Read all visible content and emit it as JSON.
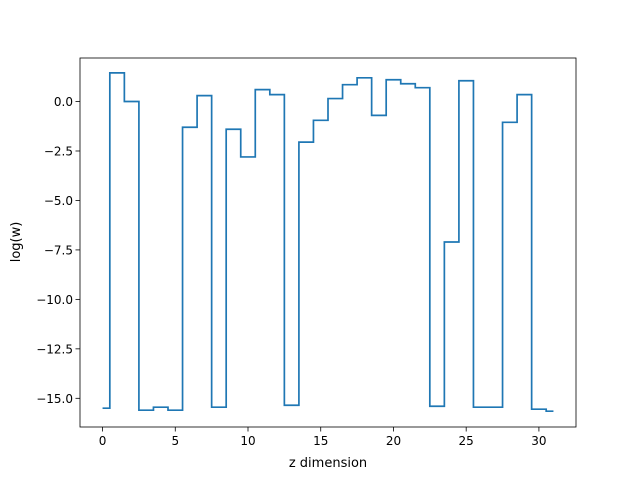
{
  "chart_data": {
    "type": "line",
    "style": "step",
    "title": "",
    "xlabel": "z dimension",
    "ylabel": "log(w)",
    "xlim": [
      -1.55,
      32.55
    ],
    "ylim": [
      -16.45,
      2.2
    ],
    "xticks": [
      0,
      5,
      10,
      15,
      20,
      25,
      30
    ],
    "yticks": [
      0.0,
      -2.5,
      -5.0,
      -7.5,
      -10.0,
      -12.5,
      -15.0
    ],
    "xtick_labels": [
      "0",
      "5",
      "10",
      "15",
      "20",
      "25",
      "30"
    ],
    "ytick_labels": [
      "0.0",
      "−2.5",
      "−5.0",
      "−7.5",
      "−10.0",
      "−12.5",
      "−15.0"
    ],
    "grid": false,
    "legend": false,
    "line_color": "#1f77b4",
    "x": [
      0,
      1,
      2,
      3,
      4,
      5,
      6,
      7,
      8,
      9,
      10,
      11,
      12,
      13,
      14,
      15,
      16,
      17,
      18,
      19,
      20,
      21,
      22,
      23,
      24,
      25,
      26,
      27,
      28,
      29,
      30,
      31
    ],
    "values": [
      -15.5,
      1.45,
      0.0,
      -15.6,
      -15.45,
      -15.6,
      -1.3,
      0.3,
      -15.45,
      -1.4,
      -2.8,
      0.6,
      0.35,
      -15.35,
      -2.05,
      -0.95,
      0.15,
      0.85,
      1.2,
      -0.7,
      1.1,
      0.9,
      0.7,
      -15.4,
      -7.1,
      1.05,
      -15.45,
      -15.45,
      -1.05,
      0.35,
      -15.55,
      -15.65
    ]
  }
}
